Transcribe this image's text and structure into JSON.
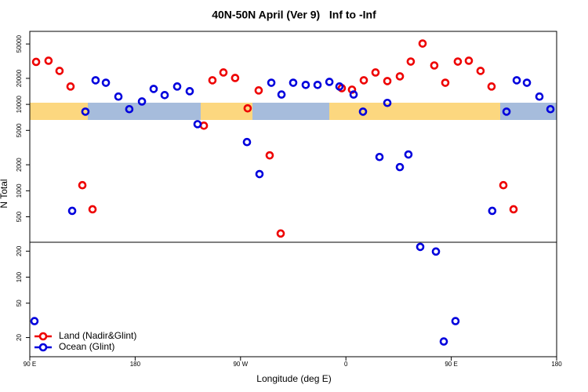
{
  "chart_data": {
    "type": "scatter",
    "title": "40N-50N April (Ver 9)   Inf to -Inf",
    "x_label": "Longitude (deg E)",
    "y_label": "N Total",
    "log_y": true,
    "xlim": [
      90,
      540
    ],
    "xticks": [
      {
        "value": 90,
        "label": "90 E"
      },
      {
        "value": 180,
        "label": "180"
      },
      {
        "value": 270,
        "label": "90 W"
      },
      {
        "value": 360,
        "label": "0"
      },
      {
        "value": 450,
        "label": "90 E"
      },
      {
        "value": 540,
        "label": "180"
      }
    ],
    "ylim": [
      12,
      70000
    ],
    "yticks": [
      20,
      50,
      100,
      200,
      500,
      1000,
      2000,
      5000,
      10000,
      20000,
      50000
    ],
    "legend_position": "lower-left",
    "series": [
      {
        "name": "Land (Nadir&Glint)",
        "color": "#ee0000",
        "x": [
          95.4,
          106,
          115.4,
          124.8,
          134.9,
          143.6,
          238.7,
          246,
          255.4,
          265.4,
          276.1,
          285.5,
          294.9,
          304.3,
          356.5,
          365.2,
          375.3,
          385.3,
          395.4,
          406.1,
          415.4,
          425.5,
          435.5,
          444.9,
          455.6,
          465,
          475,
          484.4,
          494.5,
          503.2
        ],
        "values": [
          31000,
          32000,
          24400,
          16100,
          1160,
          610,
          5670,
          19000,
          23400,
          20200,
          9000,
          14500,
          2570,
          320,
          15400,
          14800,
          19000,
          23400,
          18600,
          21100,
          31300,
          50600,
          28200,
          17800,
          31300,
          32000,
          24400,
          16100,
          1160,
          610
        ]
      },
      {
        "name": "Ocean (Glint)",
        "color": "#0000dd",
        "x": [
          94,
          126.2,
          137.5,
          146.2,
          155,
          165.7,
          175,
          185.8,
          195.8,
          205.2,
          215.9,
          226.6,
          233.3,
          275.5,
          286.2,
          296.3,
          305,
          315,
          325.7,
          335.8,
          345.9,
          354.5,
          366.6,
          374.6,
          388.7,
          395.4,
          406.1,
          413.4,
          423.5,
          436.9,
          443.6,
          453.6,
          485,
          497.2,
          505.9,
          514.6,
          525.3,
          534.7
        ],
        "values": [
          31,
          585,
          8240,
          19000,
          17800,
          12300,
          8800,
          10800,
          15100,
          12800,
          16100,
          14200,
          5900,
          3660,
          1560,
          17800,
          13000,
          17800,
          16800,
          16800,
          18200,
          16100,
          13000,
          8240,
          2460,
          10400,
          1880,
          2630,
          224,
          198,
          18,
          31,
          585,
          8240,
          19000,
          17800,
          12300,
          8800
        ]
      }
    ]
  }
}
